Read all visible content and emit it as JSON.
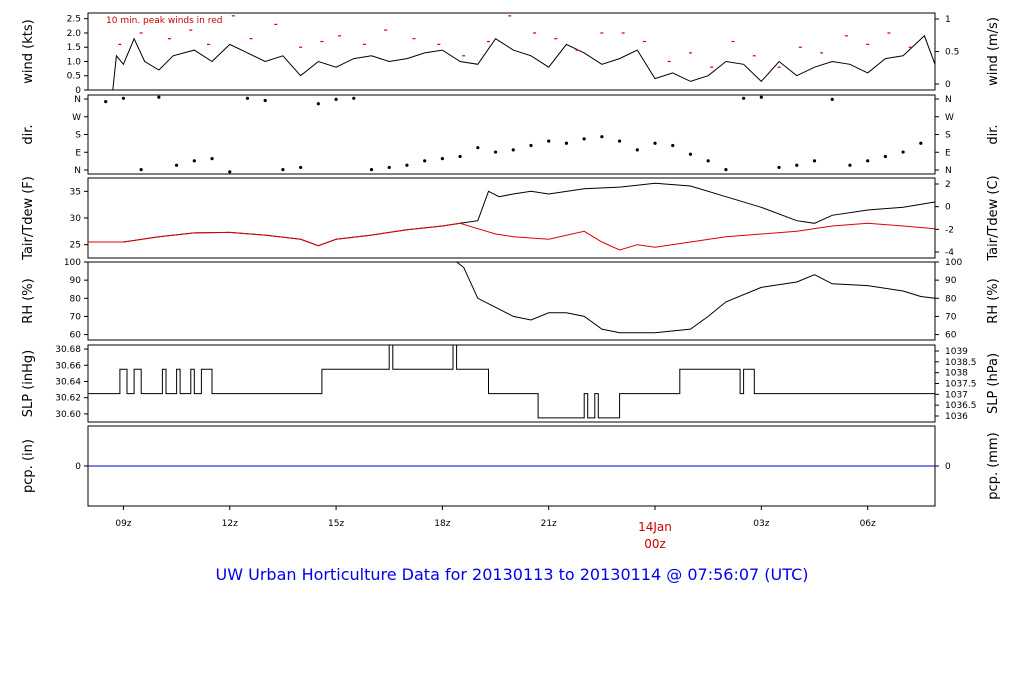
{
  "title": "UW Urban Horticulture Data for 20130113  to  20130114 @ 07:56:07  (UTC)",
  "colors": {
    "text": "#000000",
    "accent": "#cc0000",
    "blue_title": "#0000ee",
    "pcp_line": "#0000cc"
  },
  "chart_data": [
    {
      "type": "line",
      "panel": "wind",
      "ylabel": "wind (kts)",
      "ylabel_right": "wind (m/s)",
      "annotation": "10 min. peak winds in red",
      "ylim": [
        0,
        2.7
      ],
      "yticks": [
        "0",
        "0.5",
        "1.0",
        "1.5",
        "2.0",
        "2.5"
      ],
      "yticks_right": [
        "0",
        "0.5",
        "1"
      ],
      "series": [
        {
          "color": "#000000",
          "x": [
            8.0,
            8.7,
            8.8,
            9.0,
            9.3,
            9.6,
            10.0,
            10.4,
            11.0,
            11.5,
            12.0,
            12.5,
            13.0,
            13.5,
            14.0,
            14.5,
            15.0,
            15.5,
            16.0,
            16.5,
            17.0,
            17.5,
            18.0,
            18.5,
            19.0,
            19.5,
            20.0,
            20.5,
            21.0,
            21.5,
            22.0,
            22.5,
            23.0,
            23.5,
            24.0,
            24.5,
            25.0,
            25.5,
            26.0,
            26.5,
            27.0,
            27.5,
            28.0,
            28.5,
            29.0,
            29.5,
            30.0,
            30.5,
            31.0,
            31.6,
            31.9
          ],
          "y": [
            0.0,
            0.0,
            1.2,
            0.9,
            1.8,
            1.0,
            0.7,
            1.2,
            1.4,
            1.0,
            1.6,
            1.3,
            1.0,
            1.2,
            0.5,
            1.0,
            0.8,
            1.1,
            1.2,
            1.0,
            1.1,
            1.3,
            1.4,
            1.0,
            0.9,
            1.8,
            1.4,
            1.2,
            0.8,
            1.6,
            1.3,
            0.9,
            1.1,
            1.4,
            0.4,
            0.6,
            0.3,
            0.5,
            1.0,
            0.9,
            0.3,
            1.0,
            0.5,
            0.8,
            1.0,
            0.9,
            0.6,
            1.1,
            1.2,
            1.9,
            0.9
          ]
        },
        {
          "color": "#cc0000",
          "x": [
            8.9,
            9.5,
            10.3,
            10.9,
            11.4,
            12.1,
            12.6,
            13.3,
            14.0,
            14.6,
            15.1,
            15.8,
            16.4,
            17.2,
            17.9,
            18.6,
            19.3,
            19.9,
            20.6,
            21.2,
            21.8,
            22.5,
            23.1,
            23.7,
            24.4,
            25.0,
            25.6,
            26.2,
            26.8,
            27.5,
            28.1,
            28.7,
            29.4,
            30.0,
            30.6,
            31.2,
            31.7
          ],
          "y": [
            1.6,
            2.0,
            1.8,
            2.1,
            1.6,
            2.6,
            1.8,
            2.3,
            1.5,
            1.7,
            1.9,
            1.6,
            2.1,
            1.8,
            1.6,
            1.2,
            1.7,
            2.6,
            2.0,
            1.8,
            1.4,
            2.0,
            2.0,
            1.7,
            1.0,
            1.3,
            0.8,
            1.7,
            1.2,
            0.8,
            1.5,
            1.3,
            1.9,
            1.6,
            2.0,
            1.5,
            2.7
          ]
        }
      ]
    },
    {
      "type": "scatter",
      "panel": "direction",
      "ylabel": "dir.",
      "ylabel_right": "dir.",
      "yticks": [
        "N",
        "E",
        "S",
        "W",
        "N"
      ],
      "ylim": [
        0,
        360
      ],
      "series": [
        {
          "color": "#000000",
          "x": [
            8.5,
            9.0,
            9.5,
            10.0,
            10.5,
            11.0,
            11.5,
            12.0,
            12.5,
            13.0,
            13.5,
            14.0,
            14.5,
            15.0,
            15.5,
            16.0,
            16.5,
            17.0,
            17.5,
            18.0,
            18.5,
            19.0,
            19.5,
            20.0,
            20.5,
            21.0,
            21.5,
            22.0,
            22.5,
            23.0,
            23.5,
            24.0,
            24.5,
            25.0,
            25.5,
            26.0,
            26.5,
            27.0,
            27.5,
            28.0,
            28.5,
            29.0,
            29.5,
            30.0,
            30.5,
            31.0,
            31.5
          ],
          "y": [
            330,
            345,
            20,
            350,
            40,
            60,
            70,
            10,
            345,
            335,
            20,
            30,
            320,
            340,
            345,
            20,
            30,
            40,
            60,
            70,
            80,
            120,
            100,
            110,
            130,
            150,
            140,
            160,
            170,
            150,
            110,
            140,
            130,
            90,
            60,
            20,
            345,
            350,
            30,
            40,
            60,
            340,
            40,
            60,
            80,
            100,
            140
          ]
        }
      ]
    },
    {
      "type": "line",
      "panel": "temperature",
      "ylabel": "Tair/Tdew (F)",
      "ylabel_right": "Tair/Tdew (C)",
      "ylim": [
        22.5,
        37.5
      ],
      "yticks": [
        "25",
        "30",
        "35"
      ],
      "yticks_right": [
        "-4",
        "-2",
        "0",
        "2"
      ],
      "series": [
        {
          "color": "#000000",
          "x": [
            8.0,
            9.0,
            10.0,
            11.0,
            12.0,
            13.0,
            14.0,
            14.5,
            15.0,
            16.0,
            17.0,
            18.0,
            18.5,
            19.0,
            19.3,
            19.6,
            20.0,
            20.5,
            21.0,
            22.0,
            23.0,
            24.0,
            25.0,
            26.0,
            27.0,
            28.0,
            28.5,
            29.0,
            30.0,
            31.0,
            31.9
          ],
          "y": [
            25.5,
            25.5,
            26.5,
            27.2,
            27.3,
            26.8,
            26.0,
            24.8,
            26.0,
            26.8,
            27.8,
            28.5,
            29.0,
            29.5,
            35.0,
            34.0,
            34.5,
            35.0,
            34.5,
            35.5,
            35.8,
            36.5,
            36.0,
            34.0,
            32.0,
            29.5,
            29.0,
            30.5,
            31.5,
            32.0,
            33.0
          ]
        },
        {
          "color": "#e00000",
          "x": [
            8.0,
            9.0,
            10.0,
            11.0,
            12.0,
            13.0,
            14.0,
            14.5,
            15.0,
            16.0,
            17.0,
            18.0,
            18.5,
            19.0,
            19.5,
            20.0,
            21.0,
            22.0,
            22.5,
            23.0,
            23.5,
            24.0,
            25.0,
            26.0,
            27.0,
            28.0,
            29.0,
            30.0,
            31.0,
            31.9
          ],
          "y": [
            25.5,
            25.5,
            26.5,
            27.2,
            27.3,
            26.8,
            26.0,
            24.8,
            26.0,
            26.8,
            27.8,
            28.5,
            29.0,
            28.0,
            27.0,
            26.5,
            26.0,
            27.5,
            25.5,
            24.0,
            25.0,
            24.5,
            25.5,
            26.5,
            27.0,
            27.5,
            28.5,
            29.0,
            28.5,
            28.0
          ]
        }
      ]
    },
    {
      "type": "line",
      "panel": "rh",
      "ylabel": "RH (%)",
      "ylabel_right": "RH (%)",
      "ylim": [
        57,
        100
      ],
      "yticks": [
        "60",
        "70",
        "80",
        "90",
        "100"
      ],
      "series": [
        {
          "color": "#000000",
          "x": [
            8.0,
            18.4,
            18.6,
            19.0,
            19.5,
            20.0,
            20.5,
            21.0,
            21.5,
            22.0,
            22.5,
            23.0,
            24.0,
            25.0,
            25.5,
            26.0,
            27.0,
            28.0,
            28.5,
            29.0,
            30.0,
            31.0,
            31.5,
            31.9
          ],
          "y": [
            100,
            100,
            97,
            80,
            75,
            70,
            68,
            72,
            72,
            70,
            63,
            61,
            61,
            63,
            70,
            78,
            86,
            89,
            93,
            88,
            87,
            84,
            81,
            80
          ]
        }
      ]
    },
    {
      "type": "line",
      "panel": "slp",
      "ylabel": "SLP (inHg)",
      "ylabel_right": "SLP (hPa)",
      "ylim": [
        30.59,
        30.685
      ],
      "yticks": [
        "30.60",
        "30.62",
        "30.64",
        "30.66",
        "30.68"
      ],
      "yticks_right": [
        "1036",
        "1036.5",
        "1037",
        "1037.5",
        "1038",
        "1038.5",
        "1039"
      ],
      "series": [
        {
          "color": "#000000",
          "x": [
            8.0,
            8.9,
            8.9,
            9.1,
            9.1,
            9.3,
            9.3,
            9.5,
            9.5,
            10.1,
            10.1,
            10.2,
            10.2,
            10.5,
            10.5,
            10.6,
            10.6,
            10.9,
            10.9,
            11.0,
            11.0,
            11.2,
            11.2,
            11.5,
            11.5,
            14.6,
            14.6,
            16.5,
            16.5,
            16.6,
            16.6,
            18.3,
            18.3,
            18.4,
            18.4,
            19.3,
            19.3,
            20.7,
            20.7,
            22.0,
            22.0,
            22.1,
            22.1,
            22.3,
            22.3,
            22.4,
            22.4,
            23.0,
            23.0,
            24.7,
            24.7,
            26.4,
            26.4,
            26.5,
            26.5,
            26.8,
            26.8,
            31.9
          ],
          "y": [
            30.625,
            30.625,
            30.655,
            30.655,
            30.625,
            30.625,
            30.655,
            30.655,
            30.625,
            30.625,
            30.655,
            30.655,
            30.625,
            30.625,
            30.655,
            30.655,
            30.625,
            30.625,
            30.655,
            30.655,
            30.625,
            30.625,
            30.655,
            30.655,
            30.625,
            30.625,
            30.655,
            30.655,
            30.685,
            30.685,
            30.655,
            30.655,
            30.685,
            30.685,
            30.655,
            30.655,
            30.625,
            30.625,
            30.595,
            30.595,
            30.625,
            30.625,
            30.595,
            30.595,
            30.625,
            30.625,
            30.595,
            30.595,
            30.625,
            30.625,
            30.655,
            30.655,
            30.625,
            30.625,
            30.655,
            30.655,
            30.625,
            30.625
          ]
        }
      ]
    },
    {
      "type": "line",
      "panel": "pcp",
      "ylabel": "pcp. (in)",
      "ylabel_right": "pcp. (mm)",
      "ylim": [
        -1,
        1
      ],
      "yticks": [
        "0"
      ],
      "yticks_right": [
        "0"
      ],
      "series": [
        {
          "color": "#0000cc",
          "x": [
            8.0,
            31.9
          ],
          "y": [
            0,
            0
          ]
        }
      ]
    }
  ],
  "x_axis": {
    "ticks": [
      {
        "label": "09z",
        "value": 9
      },
      {
        "label": "12z",
        "value": 12
      },
      {
        "label": "15z",
        "value": 15
      },
      {
        "label": "18z",
        "value": 18
      },
      {
        "label": "21z",
        "value": 21
      },
      {
        "label": "03z",
        "value": 27
      },
      {
        "label": "06z",
        "value": 30
      }
    ],
    "day_marker": {
      "line1": "14Jan",
      "line2": "00z",
      "value": 24
    },
    "xlim": [
      8.0,
      31.9
    ]
  }
}
